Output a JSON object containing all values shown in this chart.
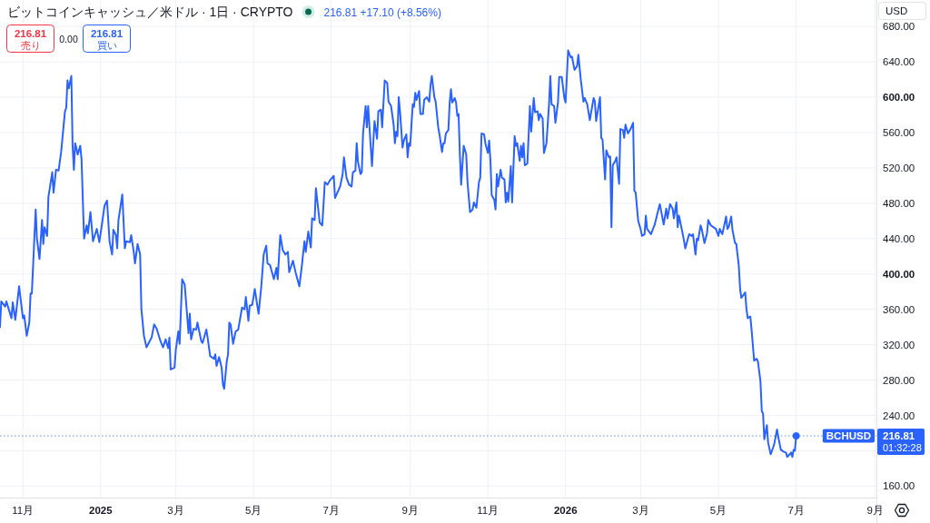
{
  "chart_data": {
    "type": "line",
    "title": "ビットコインキャッシュ／米ドル · 1日 · CRYPTO",
    "subtitle": "216.81 +17.10 (+8.56%)",
    "xlim": [
      "2024-10-14",
      "2026-09-02"
    ],
    "ylim": [
      147,
      710
    ],
    "xticks": [
      {
        "value": "2024-11-01",
        "label": "11月"
      },
      {
        "value": "2025-01-01",
        "label": "2025"
      },
      {
        "value": "2025-03-01",
        "label": "3月"
      },
      {
        "value": "2025-05-01",
        "label": "5月"
      },
      {
        "value": "2025-07-01",
        "label": "7月"
      },
      {
        "value": "2025-09-01",
        "label": "9月"
      },
      {
        "value": "2025-11-01",
        "label": "11月"
      },
      {
        "value": "2026-01-01",
        "label": "2026"
      },
      {
        "value": "2026-03-01",
        "label": "3月"
      },
      {
        "value": "2026-05-01",
        "label": "5月"
      },
      {
        "value": "2026-07-01",
        "label": "7月"
      },
      {
        "value": "2026-09-01",
        "label": "9月"
      }
    ],
    "yticks": [
      {
        "value": 160,
        "label": "160.00"
      },
      {
        "value": 200,
        "label": null
      },
      {
        "value": 240,
        "label": "240.00"
      },
      {
        "value": 280,
        "label": "280.00"
      },
      {
        "value": 320,
        "label": "320.00"
      },
      {
        "value": 360,
        "label": "360.00"
      },
      {
        "value": 400,
        "label": "400.00"
      },
      {
        "value": 440,
        "label": "440.00"
      },
      {
        "value": 480,
        "label": "480.00"
      },
      {
        "value": 520,
        "label": "520.00"
      },
      {
        "value": 560,
        "label": "560.00"
      },
      {
        "value": 600,
        "label": "600.00"
      },
      {
        "value": 640,
        "label": "640.00"
      },
      {
        "value": 680,
        "label": "680.00"
      }
    ],
    "grid": true,
    "series": [
      {
        "name": "BCHUSD",
        "color": "#2962ff",
        "x": [
          "2024-10-14",
          "2024-10-15",
          "2024-10-18",
          "2024-10-19",
          "2024-10-23",
          "2024-10-24",
          "2024-10-26",
          "2024-10-29",
          "2024-11-01",
          "2024-11-02",
          "2024-11-04",
          "2024-11-06",
          "2024-11-07",
          "2024-11-08",
          "2024-11-11",
          "2024-11-12",
          "2024-11-14",
          "2024-11-16",
          "2024-11-17",
          "2024-11-18",
          "2024-11-20",
          "2024-11-21",
          "2024-11-24",
          "2024-11-25",
          "2024-11-27",
          "2024-11-29",
          "2024-12-01",
          "2024-12-04",
          "2024-12-05",
          "2024-12-06",
          "2024-12-07",
          "2024-12-09",
          "2024-12-10",
          "2024-12-11",
          "2024-12-12",
          "2024-12-13",
          "2024-12-14",
          "2024-12-16",
          "2024-12-17",
          "2024-12-19",
          "2024-12-21",
          "2024-12-22",
          "2024-12-24",
          "2024-12-26",
          "2024-12-29",
          "2024-12-31",
          "2025-01-02",
          "2025-01-04",
          "2025-01-06",
          "2025-01-08",
          "2025-01-10",
          "2025-01-11",
          "2025-01-13",
          "2025-01-14",
          "2025-01-15",
          "2025-01-18",
          "2025-01-20",
          "2025-01-21",
          "2025-01-24",
          "2025-01-25",
          "2025-01-27",
          "2025-01-28",
          "2025-01-30",
          "2025-02-01",
          "2025-02-02",
          "2025-02-04",
          "2025-02-06",
          "2025-02-10",
          "2025-02-12",
          "2025-02-14",
          "2025-02-17",
          "2025-02-19",
          "2025-02-21",
          "2025-02-23",
          "2025-02-24",
          "2025-02-25",
          "2025-02-28",
          "2025-03-01",
          "2025-03-03",
          "2025-03-04",
          "2025-03-06",
          "2025-03-08",
          "2025-03-11",
          "2025-03-12",
          "2025-03-13",
          "2025-03-15",
          "2025-03-17",
          "2025-03-18",
          "2025-03-21",
          "2025-03-22",
          "2025-03-25",
          "2025-03-26",
          "2025-03-28",
          "2025-03-31",
          "2025-04-01",
          "2025-04-02",
          "2025-04-04",
          "2025-04-06",
          "2025-04-07",
          "2025-04-08",
          "2025-04-10",
          "2025-04-11",
          "2025-04-12",
          "2025-04-13",
          "2025-04-15",
          "2025-04-17",
          "2025-04-19",
          "2025-04-22",
          "2025-04-24",
          "2025-04-25",
          "2025-04-27",
          "2025-04-28",
          "2025-04-30",
          "2025-05-02",
          "2025-05-05",
          "2025-05-07",
          "2025-05-09",
          "2025-05-11",
          "2025-05-12",
          "2025-05-14",
          "2025-05-17",
          "2025-05-19",
          "2025-05-20",
          "2025-05-22",
          "2025-05-24",
          "2025-05-26",
          "2025-05-28",
          "2025-05-29",
          "2025-06-01",
          "2025-06-03",
          "2025-06-06",
          "2025-06-08",
          "2025-06-10",
          "2025-06-11",
          "2025-06-13",
          "2025-06-15",
          "2025-06-16",
          "2025-06-18",
          "2025-06-19",
          "2025-06-22",
          "2025-06-24",
          "2025-06-26",
          "2025-06-28",
          "2025-06-30",
          "2025-07-03",
          "2025-07-04",
          "2025-07-08",
          "2025-07-10",
          "2025-07-11",
          "2025-07-13",
          "2025-07-15",
          "2025-07-17",
          "2025-07-18",
          "2025-07-20",
          "2025-07-21",
          "2025-07-22",
          "2025-07-24",
          "2025-07-25",
          "2025-07-26",
          "2025-07-28",
          "2025-07-29",
          "2025-07-30",
          "2025-08-02",
          "2025-08-04",
          "2025-08-06",
          "2025-08-07",
          "2025-08-09",
          "2025-08-10",
          "2025-08-12",
          "2025-08-14",
          "2025-08-15",
          "2025-08-17",
          "2025-08-19",
          "2025-08-20",
          "2025-08-21",
          "2025-08-22",
          "2025-08-23",
          "2025-08-24",
          "2025-08-26",
          "2025-08-27",
          "2025-08-29",
          "2025-08-30",
          "2025-08-31",
          "2025-09-01",
          "2025-09-03",
          "2025-09-04",
          "2025-09-05",
          "2025-09-06",
          "2025-09-08",
          "2025-09-09",
          "2025-09-11",
          "2025-09-12",
          "2025-09-14",
          "2025-09-16",
          "2025-09-17",
          "2025-09-18",
          "2025-09-20",
          "2025-09-21",
          "2025-09-23",
          "2025-09-24",
          "2025-09-26",
          "2025-09-27",
          "2025-09-28",
          "2025-09-29",
          "2025-10-01",
          "2025-10-02",
          "2025-10-03",
          "2025-10-04",
          "2025-10-06",
          "2025-10-07",
          "2025-10-08",
          "2025-10-09",
          "2025-10-10",
          "2025-10-11",
          "2025-10-13",
          "2025-10-15",
          "2025-10-16",
          "2025-10-18",
          "2025-10-20",
          "2025-10-21",
          "2025-10-23",
          "2025-10-25",
          "2025-10-26",
          "2025-10-27",
          "2025-10-29",
          "2025-10-30",
          "2025-11-01",
          "2025-11-02",
          "2025-11-03",
          "2025-11-04",
          "2025-11-06",
          "2025-11-07",
          "2025-11-08",
          "2025-11-09",
          "2025-11-11",
          "2025-11-12",
          "2025-11-14",
          "2025-11-15",
          "2025-11-16",
          "2025-11-17",
          "2025-11-19",
          "2025-11-20",
          "2025-11-22",
          "2025-11-23",
          "2025-11-24",
          "2025-11-26",
          "2025-11-27",
          "2025-11-28",
          "2025-11-29",
          "2025-11-30",
          "2025-12-02",
          "2025-12-04",
          "2025-12-05",
          "2025-12-07",
          "2025-12-08",
          "2025-12-10",
          "2025-12-11",
          "2025-12-12",
          "2025-12-14",
          "2025-12-15",
          "2025-12-17",
          "2025-12-19",
          "2025-12-20",
          "2025-12-21",
          "2025-12-23",
          "2025-12-24",
          "2025-12-26",
          "2025-12-27",
          "2025-12-29",
          "2025-12-31",
          "2026-01-01",
          "2026-01-03",
          "2026-01-05",
          "2026-01-06",
          "2026-01-08",
          "2026-01-10",
          "2026-01-11",
          "2026-01-13",
          "2026-01-15",
          "2026-01-16",
          "2026-01-18",
          "2026-01-20",
          "2026-01-23",
          "2026-01-24",
          "2026-01-25",
          "2026-01-28",
          "2026-01-29",
          "2026-01-30",
          "2026-02-01",
          "2026-02-02",
          "2026-02-04",
          "2026-02-05",
          "2026-02-06",
          "2026-02-07",
          "2026-02-09",
          "2026-02-10",
          "2026-02-12",
          "2026-02-13",
          "2026-02-15",
          "2026-02-16",
          "2026-02-17",
          "2026-02-19",
          "2026-02-21",
          "2026-02-23",
          "2026-02-24",
          "2026-02-25",
          "2026-02-27",
          "2026-03-01",
          "2026-03-02",
          "2026-03-04",
          "2026-03-05",
          "2026-03-06",
          "2026-03-09",
          "2026-03-12",
          "2026-03-14",
          "2026-03-16",
          "2026-03-19",
          "2026-03-21",
          "2026-03-22",
          "2026-03-24",
          "2026-03-26",
          "2026-03-27",
          "2026-03-29",
          "2026-03-30",
          "2026-03-31",
          "2026-04-03",
          "2026-04-05",
          "2026-04-07",
          "2026-04-08",
          "2026-04-10",
          "2026-04-11",
          "2026-04-13",
          "2026-04-14",
          "2026-04-15",
          "2026-04-17",
          "2026-04-18",
          "2026-04-20",
          "2026-04-22",
          "2026-04-23",
          "2026-04-25",
          "2026-04-27",
          "2026-04-29",
          "2026-05-01",
          "2026-05-02",
          "2026-05-04",
          "2026-05-06",
          "2026-05-07",
          "2026-05-08",
          "2026-05-09",
          "2026-05-11",
          "2026-05-12",
          "2026-05-14",
          "2026-05-15",
          "2026-05-17",
          "2026-05-18",
          "2026-05-19",
          "2026-05-22",
          "2026-05-23",
          "2026-05-24",
          "2026-05-26",
          "2026-05-27",
          "2026-05-29",
          "2026-05-31",
          "2026-06-01",
          "2026-06-03",
          "2026-06-04",
          "2026-06-05",
          "2026-06-06",
          "2026-06-08",
          "2026-06-09",
          "2026-06-11",
          "2026-06-13",
          "2026-06-14",
          "2026-06-16",
          "2026-06-17",
          "2026-06-19",
          "2026-06-21",
          "2026-06-23",
          "2026-06-24",
          "2026-06-26",
          "2026-06-27",
          "2026-06-28",
          "2026-06-29",
          "2026-06-30",
          "2026-07-01"
        ],
        "values": [
          340,
          369,
          363,
          369,
          350,
          368,
          348,
          386,
          350,
          353,
          330,
          345,
          378,
          378,
          473,
          440,
          417,
          461,
          434,
          453,
          443,
          487,
          515,
          492,
          518,
          517,
          538,
          584,
          588,
          619,
          610,
          624,
          545,
          518,
          548,
          542,
          535,
          545,
          530,
          440,
          455,
          446,
          470,
          437,
          451,
          436,
          456,
          477,
          483,
          437,
          422,
          450,
          444,
          429,
          461,
          490,
          429,
          437,
          436,
          444,
          425,
          412,
          434,
          422,
          360,
          330,
          317,
          328,
          343,
          338,
          324,
          317,
          326,
          316,
          328,
          292,
          294,
          314,
          335,
          321,
          394,
          388,
          333,
          355,
          326,
          338,
          337,
          345,
          324,
          322,
          337,
          328,
          307,
          304,
          309,
          296,
          306,
          294,
          275,
          270,
          301,
          309,
          345,
          343,
          321,
          335,
          337,
          362,
          360,
          374,
          347,
          364,
          365,
          383,
          355,
          384,
          422,
          432,
          412,
          410,
          394,
          407,
          394,
          444,
          427,
          422,
          425,
          402,
          415,
          402,
          386,
          410,
          437,
          425,
          448,
          430,
          463,
          461,
          497,
          458,
          455,
          504,
          501,
          506,
          511,
          486,
          499,
          513,
          532,
          509,
          501,
          499,
          515,
          517,
          548,
          527,
          513,
          515,
          559,
          590,
          566,
          590,
          522,
          573,
          553,
          584,
          586,
          566,
          619,
          616,
          595,
          590,
          569,
          548,
          561,
          556,
          600,
          584,
          543,
          551,
          558,
          532,
          548,
          545,
          592,
          589,
          605,
          597,
          607,
          581,
          581,
          597,
          600,
          595,
          614,
          624,
          600,
          595,
          566,
          558,
          538,
          548,
          548,
          559,
          563,
          594,
          609,
          594,
          599,
          594,
          579,
          581,
          535,
          501,
          545,
          535,
          504,
          470,
          473,
          481,
          475,
          504,
          509,
          559,
          558,
          548,
          537,
          551,
          528,
          489,
          484,
          473,
          513,
          499,
          518,
          509,
          507,
          481,
          492,
          482,
          522,
          481,
          556,
          545,
          548,
          528,
          545,
          532,
          548,
          523,
          525,
          590,
          561,
          599,
          583,
          584,
          574,
          581,
          576,
          537,
          548,
          592,
          624,
          592,
          590,
          571,
          594,
          623,
          623,
          599,
          594,
          653,
          645,
          646,
          631,
          635,
          648,
          619,
          595,
          599,
          592,
          574,
          599,
          595,
          573,
          600,
          554,
          552,
          507,
          540,
          532,
          533,
          453,
          523,
          528,
          532,
          502,
          564,
          563,
          554,
          569,
          559,
          564,
          571,
          494,
          492,
          460,
          450,
          443,
          445,
          466,
          451,
          445,
          456,
          468,
          479,
          456,
          474,
          463,
          479,
          474,
          463,
          481,
          453,
          466,
          445,
          429,
          440,
          445,
          443,
          445,
          422,
          440,
          438,
          455,
          450,
          435,
          446,
          461,
          455,
          453,
          451,
          443,
          451,
          445,
          458,
          465,
          451,
          453,
          465,
          450,
          435,
          434,
          409,
          383,
          373,
          379,
          360,
          350,
          352,
          337,
          302,
          304,
          301,
          278,
          245,
          242,
          213,
          229,
          209,
          196,
          204,
          209,
          224,
          215,
          201,
          199,
          198,
          193,
          196,
          198,
          193,
          201,
          200,
          216.81
        ]
      },
      {
        "type": "scatter",
        "color": "#2962ff",
        "marker": "circle",
        "x": [
          "2026-07-01"
        ],
        "values": [
          216.81
        ]
      }
    ],
    "ref_lines": [
      {
        "axis": "y",
        "value": 216.81,
        "label": "216.81",
        "color": "#2962ff",
        "line_style": "dotted"
      }
    ],
    "annotations": [
      "216.81",
      "売り",
      "0.00",
      "216.81",
      "買い",
      "USD",
      "01:32:28"
    ]
  }
}
